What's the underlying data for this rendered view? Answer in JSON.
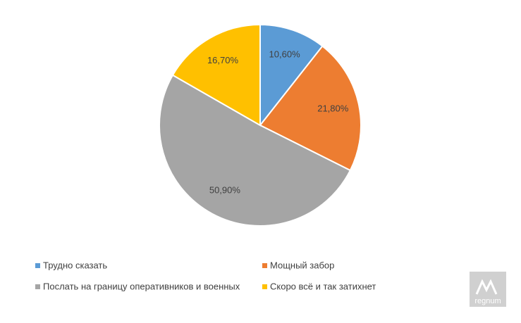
{
  "chart_data": {
    "type": "pie",
    "categories": [
      "Трудно сказать",
      "Мощный забор",
      "Послать на границу оперативников и военных",
      "Скоро всё и так затихнет"
    ],
    "values": [
      10.6,
      21.8,
      50.9,
      16.7
    ],
    "value_labels": [
      "10,60%",
      "21,80%",
      "50,90%",
      "16,70%"
    ],
    "colors": [
      "#5b9bd5",
      "#ed7d31",
      "#a5a5a5",
      "#ffc000"
    ],
    "legend": "bottom"
  },
  "watermark": "regnum"
}
